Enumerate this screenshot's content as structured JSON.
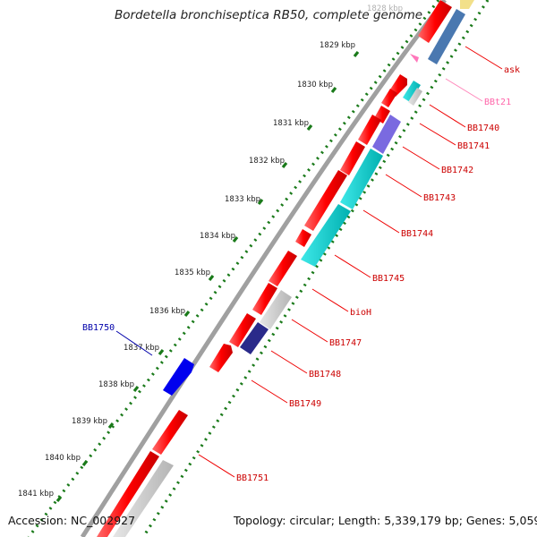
{
  "title": "Bordetella bronchiseptica RB50, complete genome",
  "footer": {
    "accession": "Accession: NC_002927",
    "summary": "Topology: circular; Length: 5,339,179 bp; Genes: 5,059"
  },
  "colors": {
    "backbone": "#a0a0a0",
    "tick_dots": "#1a7a1a",
    "cds": "#ff0000",
    "gene_label": "#cc0000",
    "trna_label": "#ff66aa",
    "highlight_label": "#0000aa"
  },
  "ticks": [
    {
      "label": "1828 kbp",
      "faded": true
    },
    {
      "label": "1829 kbp"
    },
    {
      "label": "1830 kbp"
    },
    {
      "label": "1831 kbp"
    },
    {
      "label": "1832 kbp"
    },
    {
      "label": "1833 kbp"
    },
    {
      "label": "1834 kbp"
    },
    {
      "label": "1835 kbp"
    },
    {
      "label": "1836 kbp"
    },
    {
      "label": "1837 kbp"
    },
    {
      "label": "1838 kbp"
    },
    {
      "label": "1839 kbp"
    },
    {
      "label": "1840 kbp"
    },
    {
      "label": "1841 kbp"
    }
  ],
  "gene_labels": [
    {
      "text": "ask",
      "kind": "gene"
    },
    {
      "text": "BBt21",
      "kind": "trna"
    },
    {
      "text": "BB1740",
      "kind": "gene"
    },
    {
      "text": "BB1741",
      "kind": "gene"
    },
    {
      "text": "BB1742",
      "kind": "gene"
    },
    {
      "text": "BB1743",
      "kind": "gene"
    },
    {
      "text": "BB1744",
      "kind": "gene"
    },
    {
      "text": "BB1745",
      "kind": "gene"
    },
    {
      "text": "bioH",
      "kind": "gene"
    },
    {
      "text": "BB1747",
      "kind": "gene"
    },
    {
      "text": "BB1748",
      "kind": "gene"
    },
    {
      "text": "BB1749",
      "kind": "gene"
    },
    {
      "text": "BB1751",
      "kind": "gene"
    },
    {
      "text": "BB1750",
      "kind": "highlight"
    }
  ]
}
